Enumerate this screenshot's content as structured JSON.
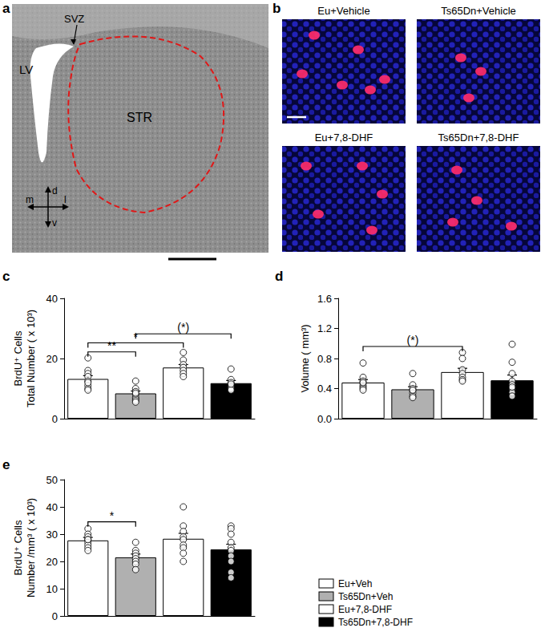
{
  "panels": {
    "a": {
      "label": "a",
      "regions": {
        "svz": "SVZ",
        "lv": "LV",
        "str": "STR"
      },
      "compass": {
        "up": "d",
        "down": "v",
        "left": "m",
        "right": "l"
      }
    },
    "b": {
      "label": "b",
      "images": [
        "Eu+Vehicle",
        "Ts65Dn+Vehicle",
        "Eu+7,8-DHF",
        "Ts65Dn+7,8-DHF"
      ]
    }
  },
  "legend_entries": [
    {
      "name": "Eu+Veh",
      "color": "#ffffff"
    },
    {
      "name": "Ts65Dn+Veh",
      "color": "#b0b0b0"
    },
    {
      "name": "Eu+7,8-DHF",
      "color": "#ffffff"
    },
    {
      "name": "Ts65Dn+7,8-DHF",
      "color": "#000000"
    }
  ],
  "chart_data": [
    {
      "type": "bar",
      "title": "c",
      "ylabel": "BrdU⁺ Cells\nTotal Number ( x 10³)",
      "categories": [
        null,
        null,
        null,
        null
      ],
      "values": [
        13.2,
        8.4,
        17.0,
        11.8
      ],
      "errors": [
        1.1,
        0.8,
        1.0,
        0.9
      ],
      "colors": [
        "#ffffff",
        "#b0b0b0",
        "#ffffff",
        "#000000"
      ],
      "points": [
        [
          20.2,
          16,
          15,
          14,
          12.5,
          11,
          10,
          9.5,
          12
        ],
        [
          12.5,
          10,
          9,
          8,
          7,
          6.5,
          6,
          5.5,
          8.5
        ],
        [
          22,
          19.5,
          18,
          17,
          16,
          15,
          14
        ],
        [
          16.5,
          13,
          12,
          11,
          10.5,
          10,
          9.5,
          11.5
        ]
      ],
      "annotations": [
        {
          "from": 0,
          "to": 1,
          "text": "**"
        },
        {
          "from": 0,
          "to": 2,
          "text": "*"
        },
        {
          "from": 1,
          "to": 3,
          "text": "(*)"
        }
      ],
      "ylim": [
        0,
        40
      ],
      "yticks": [
        0,
        20,
        40
      ],
      "grid": false
    },
    {
      "type": "bar",
      "title": "d",
      "ylabel": "Volume ( mm³)",
      "categories": [
        null,
        null,
        null,
        null
      ],
      "values": [
        0.48,
        0.39,
        0.62,
        0.51
      ],
      "errors": [
        0.04,
        0.035,
        0.05,
        0.07
      ],
      "colors": [
        "#ffffff",
        "#b0b0b0",
        "#ffffff",
        "#000000"
      ],
      "points": [
        [
          0.74,
          0.55,
          0.5,
          0.47,
          0.44,
          0.42,
          0.4,
          0.38,
          0.48
        ],
        [
          0.6,
          0.45,
          0.4,
          0.37,
          0.34,
          0.3,
          0.28,
          0.38
        ],
        [
          0.88,
          0.8,
          0.65,
          0.6,
          0.55,
          0.52,
          0.5
        ],
        [
          0.99,
          0.75,
          0.6,
          0.5,
          0.45,
          0.4,
          0.35,
          0.3,
          0.42
        ]
      ],
      "annotations": [
        {
          "from": 0,
          "to": 2,
          "text": "(*)"
        }
      ],
      "ylim": [
        0,
        1.6
      ],
      "yticks": [
        {
          "value": 0,
          "label": "0.0"
        },
        0.4,
        0.8,
        1.2,
        1.6
      ],
      "grid": false
    },
    {
      "type": "bar",
      "title": "e",
      "ylabel": "BrdU⁺ Cells\nNumber /mm³ ( x 10³)",
      "categories": [
        null,
        null,
        null,
        null
      ],
      "values": [
        27.7,
        21.5,
        28.3,
        24.4
      ],
      "errors": [
        1.1,
        1.2,
        2.0,
        1.9
      ],
      "colors": [
        "#ffffff",
        "#b0b0b0",
        "#ffffff",
        "#000000"
      ],
      "points": [
        [
          32,
          30,
          29,
          28,
          27,
          26,
          25,
          24,
          28
        ],
        [
          27,
          24,
          23,
          22,
          21,
          20,
          19,
          17
        ],
        [
          40,
          33,
          31,
          29,
          28,
          26,
          25,
          23,
          20
        ],
        [
          33,
          32,
          30,
          27,
          25,
          24,
          22,
          20,
          16,
          14
        ]
      ],
      "annotations": [
        {
          "from": 0,
          "to": 1,
          "text": "*"
        }
      ],
      "ylim": [
        0,
        50
      ],
      "yticks": [
        0,
        10,
        20,
        30,
        40,
        50
      ],
      "grid": false
    }
  ]
}
